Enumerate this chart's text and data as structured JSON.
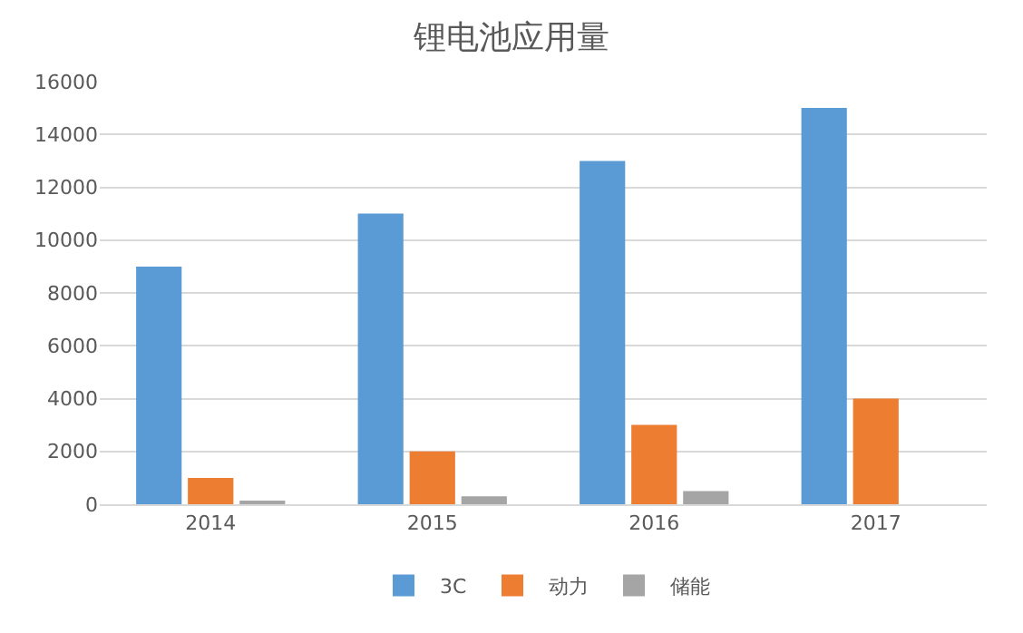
{
  "chart_data": {
    "type": "bar",
    "title": "锂电池应用量",
    "categories": [
      "2014",
      "2015",
      "2016",
      "2017"
    ],
    "series": [
      {
        "name": "3C",
        "color": "#5b9bd5",
        "values": [
          9000,
          11000,
          13000,
          15000
        ]
      },
      {
        "name": "动力",
        "color": "#ed7d31",
        "values": [
          1000,
          2000,
          3000,
          4000
        ]
      },
      {
        "name": "储能",
        "color": "#a5a5a5",
        "values": [
          100,
          300,
          500,
          null
        ]
      }
    ],
    "ylim": [
      0,
      16000
    ],
    "yticks": [
      0,
      2000,
      4000,
      6000,
      8000,
      10000,
      12000,
      14000,
      16000
    ],
    "grid": "y",
    "legend": "bottom"
  }
}
